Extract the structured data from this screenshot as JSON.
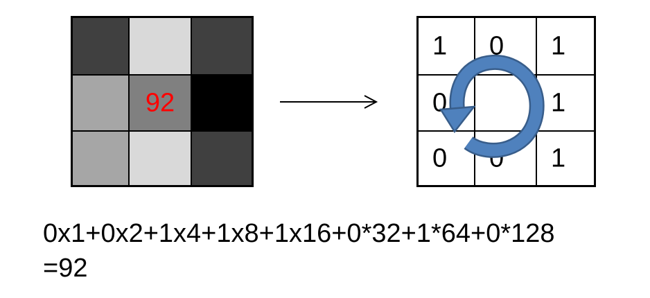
{
  "gray_grid": {
    "center_value": "92",
    "center_value_color": "#ff0000",
    "cell_colors": [
      [
        "#404040",
        "#d9d9d9",
        "#404040"
      ],
      [
        "#a6a6a6",
        "#808080",
        "#000000"
      ],
      [
        "#a6a6a6",
        "#d9d9d9",
        "#404040"
      ]
    ]
  },
  "arrow_icon": "right-arrow-icon",
  "binary_grid": {
    "rows": [
      [
        "1",
        "0",
        "1"
      ],
      [
        "0",
        "",
        "1"
      ],
      [
        "0",
        "0",
        "1"
      ]
    ],
    "rotation_icon": "counterclockwise-rotation-icon",
    "rotation_color": "#4f81bd"
  },
  "formula": {
    "line1": "0x1+0x2+1x4+1x8+1x16+0*32+1*64+0*128",
    "line2": "=92"
  }
}
